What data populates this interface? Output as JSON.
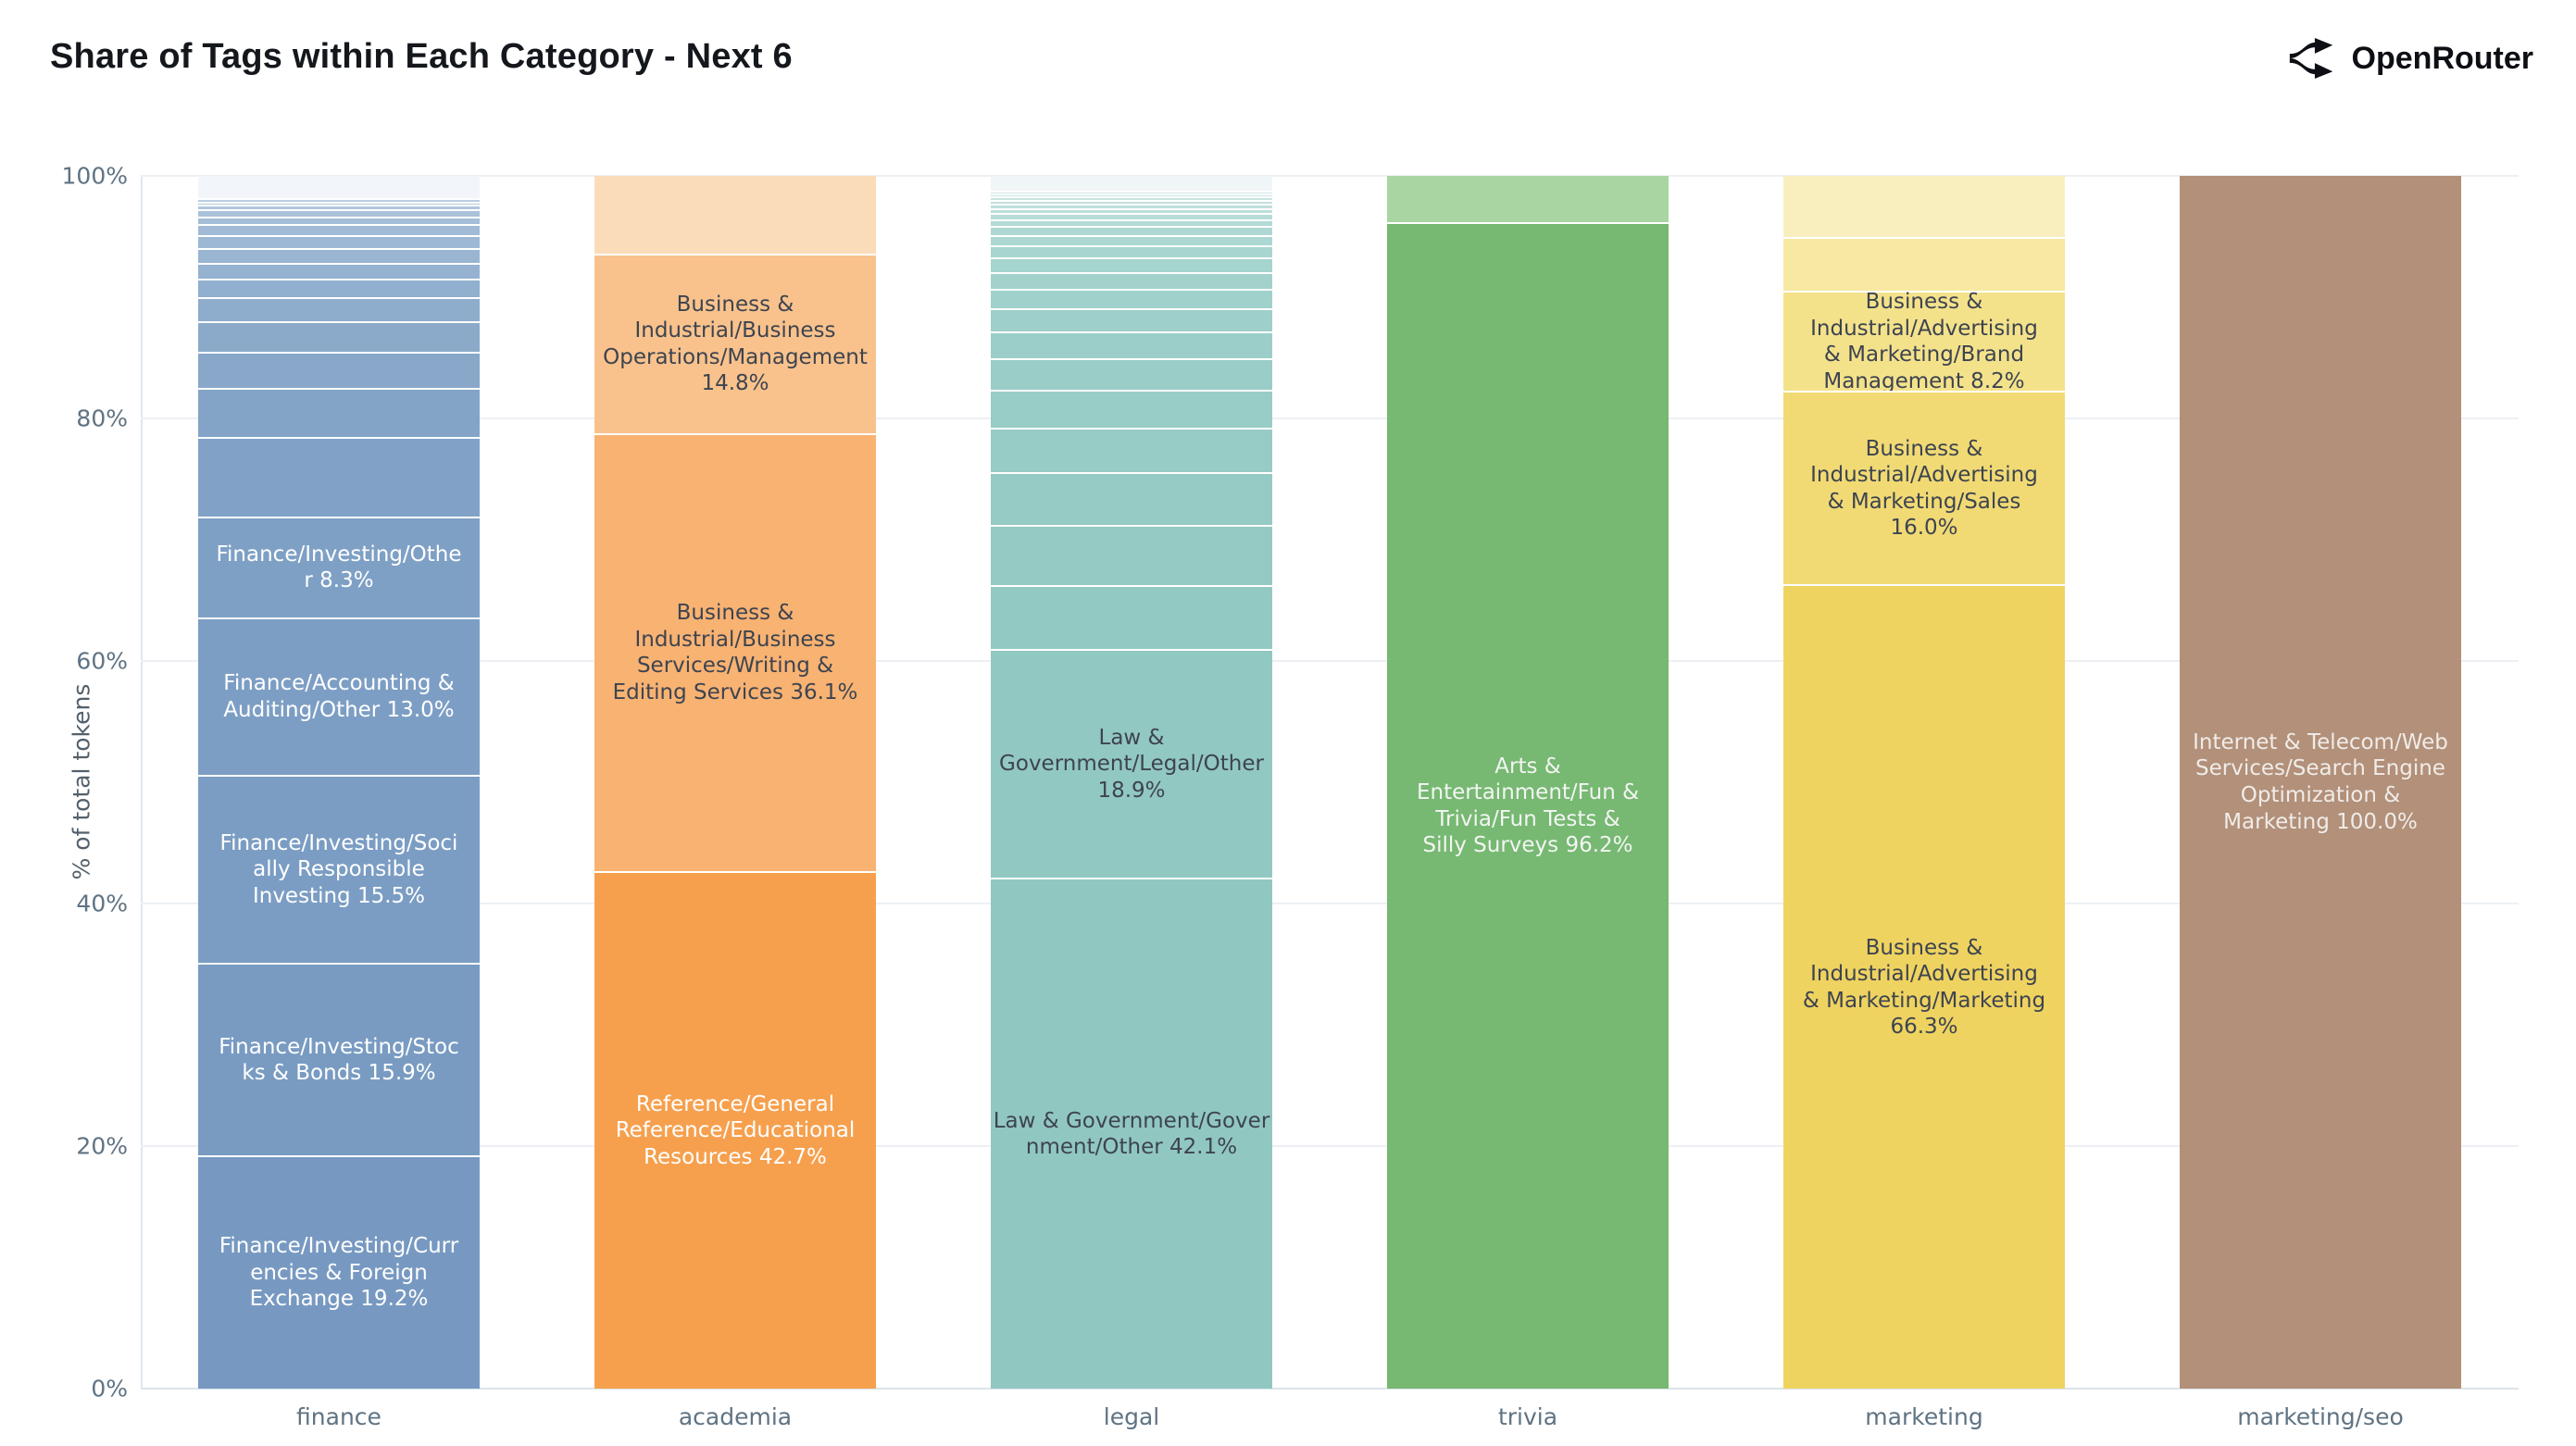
{
  "header": {
    "title": "Share of Tags within Each Category - Next 6",
    "brand": "OpenRouter"
  },
  "chart_data": {
    "type": "bar",
    "stacked": true,
    "title": "Share of Tags within Each Category - Next 6",
    "xlabel": "",
    "ylabel": "% of total tokens",
    "ylim": [
      0,
      100
    ],
    "grid": true,
    "legend": "none",
    "y_ticks": [
      {
        "value": 0,
        "label": "0%"
      },
      {
        "value": 20,
        "label": "20%"
      },
      {
        "value": 40,
        "label": "40%"
      },
      {
        "value": 60,
        "label": "60%"
      },
      {
        "value": 80,
        "label": "80%"
      },
      {
        "value": 100,
        "label": "100%"
      }
    ],
    "categories": [
      "finance",
      "academia",
      "legal",
      "trivia",
      "marketing",
      "marketing/seo"
    ],
    "bars": [
      {
        "category": "finance",
        "segments": [
          {
            "label": null,
            "value": 1.8,
            "color": "#F2F6FA"
          },
          {
            "label": null,
            "value": 0.3,
            "color": "#BACDE2"
          },
          {
            "label": null,
            "value": 0.3,
            "color": "#B4C9DF"
          },
          {
            "label": null,
            "value": 0.35,
            "color": "#AFC5DC"
          },
          {
            "label": null,
            "value": 0.6,
            "color": "#AAC1DA"
          },
          {
            "label": null,
            "value": 0.65,
            "color": "#A5BED8"
          },
          {
            "label": null,
            "value": 0.85,
            "color": "#A1BBD6"
          },
          {
            "label": null,
            "value": 1.1,
            "color": "#9DB8D4"
          },
          {
            "label": null,
            "value": 1.2,
            "color": "#99B5D2"
          },
          {
            "label": null,
            "value": 1.35,
            "color": "#95B2D0"
          },
          {
            "label": null,
            "value": 1.5,
            "color": "#91AFCE"
          },
          {
            "label": null,
            "value": 2.0,
            "color": "#8EACCC"
          },
          {
            "label": null,
            "value": 2.5,
            "color": "#8BAACA"
          },
          {
            "label": null,
            "value": 3.0,
            "color": "#88A7C9"
          },
          {
            "label": null,
            "value": 4.0,
            "color": "#84A4C7"
          },
          {
            "label": null,
            "value": 6.6,
            "color": "#81A2C6"
          },
          {
            "label": "Finance/Investing/Other 8.3%",
            "value": 8.3,
            "color": "#7FA0C5",
            "text_color": "#ffffff",
            "lines": [
              "Finance/Investing/Othe",
              "r 8.3%"
            ]
          },
          {
            "label": "Finance/Accounting & Auditing/Other 13.0%",
            "value": 13.0,
            "color": "#7D9EC4",
            "text_color": "#ffffff",
            "lines": [
              "Finance/Accounting &",
              "Auditing/Other 13.0%"
            ]
          },
          {
            "label": "Finance/Investing/Socially Responsible Investing 15.5%",
            "value": 15.5,
            "color": "#7B9DC3",
            "text_color": "#ffffff",
            "lines": [
              "Finance/Investing/Soci",
              "ally Responsible",
              "Investing 15.5%"
            ]
          },
          {
            "label": "Finance/Investing/Stocks & Bonds 15.9%",
            "value": 15.9,
            "color": "#799BC2",
            "text_color": "#ffffff",
            "lines": [
              "Finance/Investing/Stoc",
              "ks & Bonds 15.9%"
            ]
          },
          {
            "label": "Finance/Investing/Currencies & Foreign Exchange 19.2%",
            "value": 19.2,
            "color": "#7799C1",
            "text_color": "#ffffff",
            "lines": [
              "Finance/Investing/Curr",
              "encies & Foreign",
              "Exchange 19.2%"
            ]
          }
        ]
      },
      {
        "category": "academia",
        "segments": [
          {
            "label": null,
            "value": 6.4,
            "color": "#FBDCB9"
          },
          {
            "label": "Business & Industrial/Business Operations/Management 14.8%",
            "value": 14.8,
            "color": "#F9C28C",
            "text_color": "#3d4450",
            "lines": [
              "Business &",
              "Industrial/Business",
              "Operations/Management",
              "14.8%"
            ]
          },
          {
            "label": "Business & Industrial/Business Services/Writing & Editing Services 36.1%",
            "value": 36.1,
            "color": "#F8B272",
            "text_color": "#3d4450",
            "lines": [
              "Business &",
              "Industrial/Business",
              "Services/Writing &",
              "Editing Services 36.1%"
            ]
          },
          {
            "label": "Reference/General Reference/Educational Resources 42.7%",
            "value": 42.7,
            "color": "#F6A04E",
            "text_color": "#ffffff",
            "lines": [
              "Reference/General",
              "Reference/Educational",
              "Resources 42.7%"
            ]
          }
        ]
      },
      {
        "category": "legal",
        "segments": [
          {
            "label": null,
            "value": 1.2,
            "color": "#F0F5F7"
          },
          {
            "label": null,
            "value": 0.25,
            "color": "#CFE7E4"
          },
          {
            "label": null,
            "value": 0.25,
            "color": "#CBE5E2"
          },
          {
            "label": null,
            "value": 0.3,
            "color": "#C7E3E0"
          },
          {
            "label": null,
            "value": 0.3,
            "color": "#C3E1DE"
          },
          {
            "label": null,
            "value": 0.35,
            "color": "#BFDFDC"
          },
          {
            "label": null,
            "value": 0.4,
            "color": "#BBDEDA"
          },
          {
            "label": null,
            "value": 0.5,
            "color": "#B7DCD8"
          },
          {
            "label": null,
            "value": 0.6,
            "color": "#B3DAD6"
          },
          {
            "label": null,
            "value": 0.7,
            "color": "#AFD8D4"
          },
          {
            "label": null,
            "value": 0.9,
            "color": "#ACD7D2"
          },
          {
            "label": null,
            "value": 1.0,
            "color": "#A9D5D0"
          },
          {
            "label": null,
            "value": 1.2,
            "color": "#A6D4CE"
          },
          {
            "label": null,
            "value": 1.4,
            "color": "#A3D2CD"
          },
          {
            "label": null,
            "value": 1.6,
            "color": "#A0D1CB"
          },
          {
            "label": null,
            "value": 1.9,
            "color": "#9ECFCA"
          },
          {
            "label": null,
            "value": 2.2,
            "color": "#9CCEC9"
          },
          {
            "label": null,
            "value": 2.6,
            "color": "#9ACDC8"
          },
          {
            "label": null,
            "value": 3.1,
            "color": "#98CCC7"
          },
          {
            "label": null,
            "value": 3.7,
            "color": "#96CBC6"
          },
          {
            "label": null,
            "value": 4.3,
            "color": "#95CAC5"
          },
          {
            "label": null,
            "value": 5.0,
            "color": "#94C9C4"
          },
          {
            "label": null,
            "value": 5.25,
            "color": "#93C9C3"
          },
          {
            "label": "Law & Government/Legal/Other 18.9%",
            "value": 18.9,
            "color": "#92C8C2",
            "text_color": "#3d4450",
            "lines": [
              "Law &",
              "Government/Legal/Other",
              "18.9%"
            ]
          },
          {
            "label": "Law & Government/Government/Other 42.1%",
            "value": 42.1,
            "color": "#91C7C1",
            "text_color": "#3d4450",
            "lines": [
              "Law & Government/Gover",
              "nment/Other 42.1%"
            ]
          }
        ]
      },
      {
        "category": "trivia",
        "segments": [
          {
            "label": null,
            "value": 3.8,
            "color": "#A9D5A2"
          },
          {
            "label": "Arts & Entertainment/Fun & Trivia/Fun Tests & Silly Surveys 96.2%",
            "value": 96.2,
            "color": "#77B872",
            "text_color": "#f2f6f2",
            "lines": [
              "Arts &",
              "Entertainment/Fun &",
              "Trivia/Fun Tests &",
              "Silly Surveys 96.2%"
            ]
          }
        ]
      },
      {
        "category": "marketing",
        "segments": [
          {
            "label": null,
            "value": 5.0,
            "color": "#F9EFBE"
          },
          {
            "label": null,
            "value": 4.5,
            "color": "#F7E8A3"
          },
          {
            "label": "Business & Industrial/Advertising & Marketing/Brand Management 8.2%",
            "value": 8.2,
            "color": "#F4E28B",
            "text_color": "#3d4450",
            "lines": [
              "Business &",
              "Industrial/Advertising",
              "& Marketing/Brand",
              "Management 8.2%"
            ]
          },
          {
            "label": "Business & Industrial/Advertising & Marketing/Sales 16.0%",
            "value": 16.0,
            "color": "#F1DA74",
            "text_color": "#3d4450",
            "lines": [
              "Business &",
              "Industrial/Advertising",
              "& Marketing/Sales",
              "16.0%"
            ]
          },
          {
            "label": "Business & Industrial/Advertising & Marketing/Marketing 66.3%",
            "value": 66.3,
            "color": "#EFD360",
            "text_color": "#3d4450",
            "lines": [
              "Business &",
              "Industrial/Advertising",
              "& Marketing/Marketing",
              "66.3%"
            ]
          }
        ]
      },
      {
        "category": "marketing/seo",
        "segments": [
          {
            "label": "Internet & Telecom/Web Services/Search Engine Optimization & Marketing 100.0%",
            "value": 100.0,
            "color": "#B29079",
            "text_color": "#f0ece9",
            "lines": [
              "Internet & Telecom/Web",
              "Services/Search Engine",
              "Optimization &",
              "Marketing 100.0%"
            ]
          }
        ]
      }
    ]
  }
}
